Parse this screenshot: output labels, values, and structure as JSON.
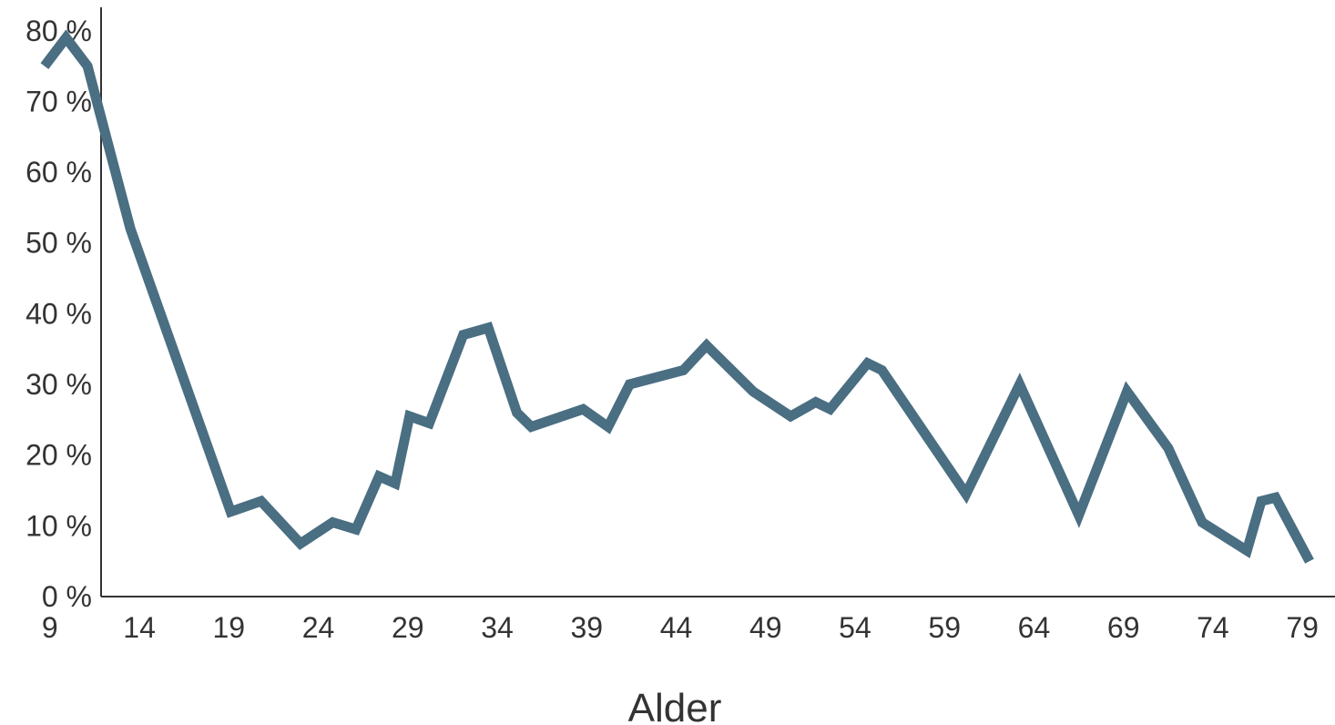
{
  "chart_data": {
    "type": "line",
    "title": "",
    "xlabel": "Alder",
    "ylabel": "",
    "x_ticks": [
      "9",
      "14",
      "19",
      "24",
      "29",
      "34",
      "39",
      "44",
      "49",
      "54",
      "59",
      "64",
      "69",
      "74",
      "79"
    ],
    "y_ticks": [
      "0 %",
      "10 %",
      "20 %",
      "30 %",
      "40 %",
      "50 %",
      "60 %",
      "70 %",
      "80 %"
    ],
    "xlim": [
      8.5,
      79.5
    ],
    "ylim": [
      0,
      81
    ],
    "grid": false,
    "legend": "none",
    "line_color": "#4a6e82",
    "series": [
      {
        "x": [
          8.7,
          9.9,
          11.1,
          13.5,
          19.1,
          20.8,
          23.0,
          24.8,
          26.1,
          27.4,
          28.3,
          29.1,
          30.2,
          32.1,
          33.5,
          35.1,
          35.9,
          38.8,
          40.2,
          41.4,
          44.4,
          45.7,
          48.3,
          50.4,
          51.8,
          52.6,
          54.7,
          55.5,
          60.2,
          63.2,
          66.5,
          69.2,
          71.5,
          73.4,
          75.9,
          76.7,
          77.5,
          79.4
        ],
        "y": [
          75,
          79,
          75,
          52,
          12,
          13.5,
          7.5,
          10.5,
          9.5,
          17,
          16,
          25.5,
          24.5,
          37,
          38,
          26,
          24,
          26.5,
          24,
          30,
          32,
          35.5,
          29,
          25.5,
          27.5,
          26.5,
          33,
          32,
          14.5,
          30,
          11.5,
          29,
          21,
          10.5,
          6.5,
          13.5,
          14,
          5
        ]
      }
    ]
  }
}
